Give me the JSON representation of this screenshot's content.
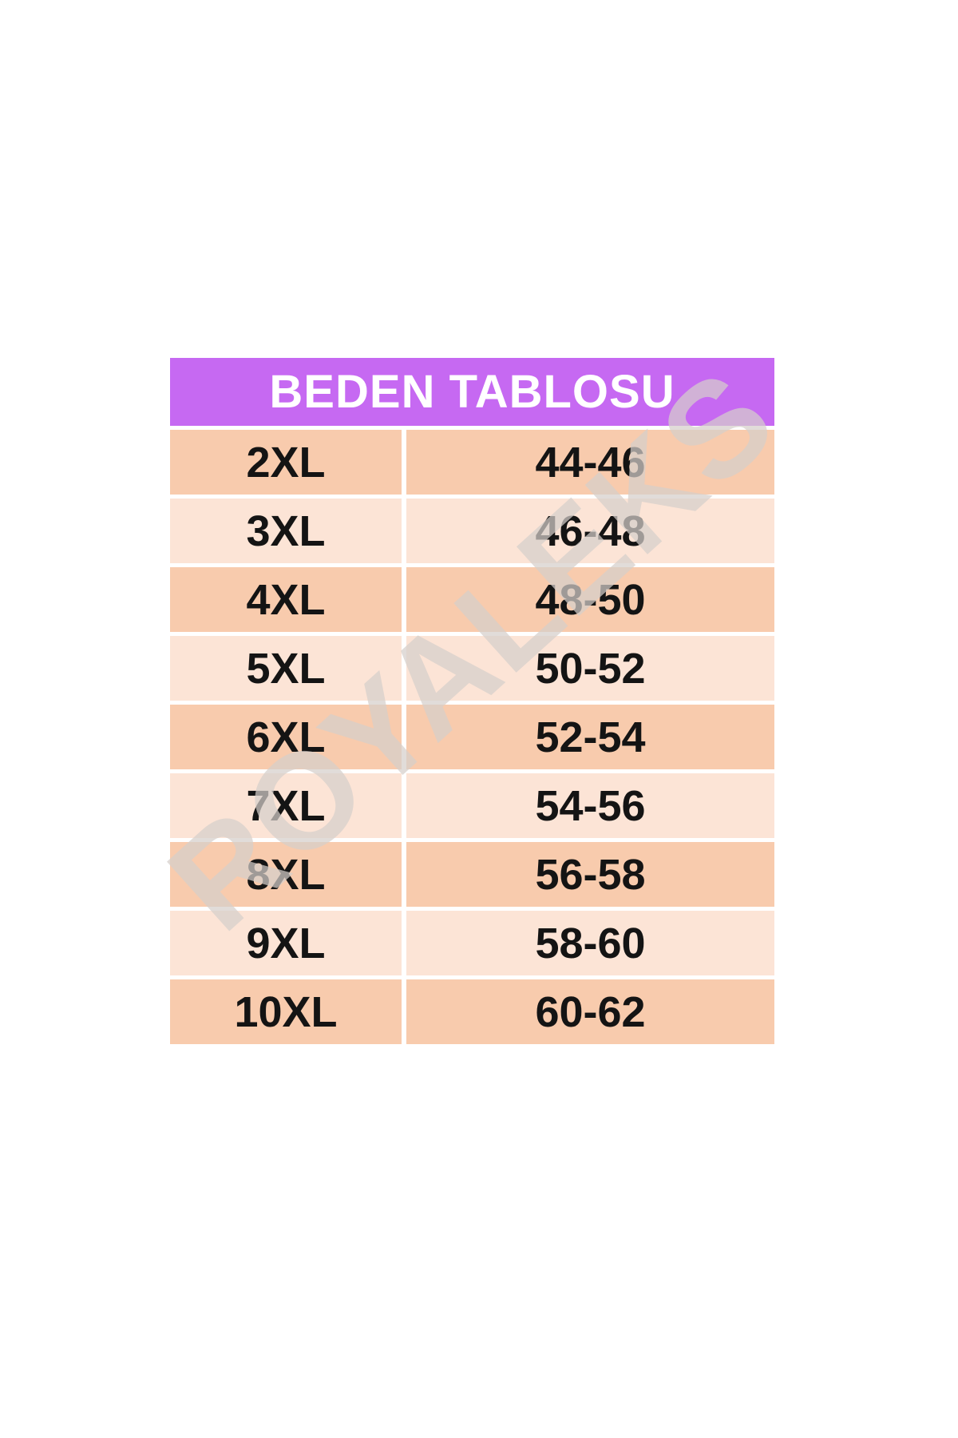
{
  "chart_data": {
    "type": "table",
    "title": "BEDEN TABLOSU",
    "rows": [
      {
        "size": "2XL",
        "range": "44-46"
      },
      {
        "size": "3XL",
        "range": "46-48"
      },
      {
        "size": "4XL",
        "range": "48-50"
      },
      {
        "size": "5XL",
        "range": "50-52"
      },
      {
        "size": "6XL",
        "range": "52-54"
      },
      {
        "size": "7XL",
        "range": "54-56"
      },
      {
        "size": "8XL",
        "range": "56-58"
      },
      {
        "size": "9XL",
        "range": "58-60"
      },
      {
        "size": "10XL",
        "range": "60-62"
      }
    ]
  },
  "watermark": {
    "text": "ROYALEKS"
  },
  "colors": {
    "header_bg": "#C669F2",
    "header_text": "#FFFFFF",
    "row_dark": "#F8CBAD",
    "row_light": "#FCE4D6",
    "text": "#141414",
    "watermark": "rgba(213,206,202,0.72)"
  }
}
